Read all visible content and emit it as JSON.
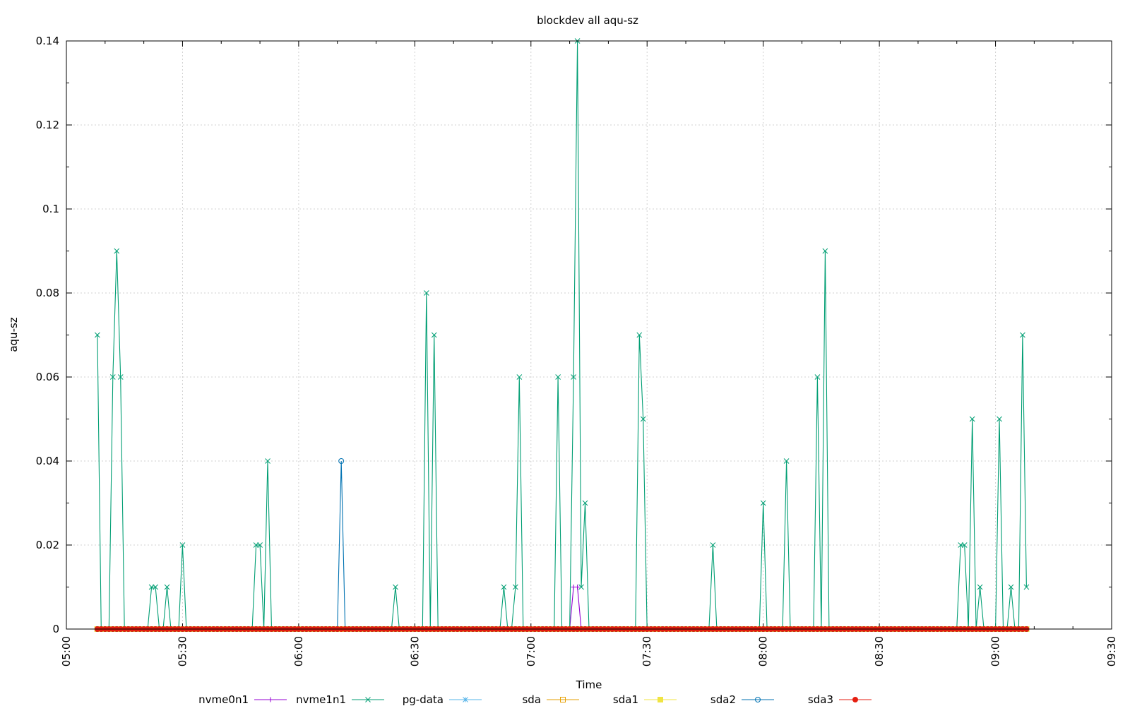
{
  "chart_data": {
    "type": "line",
    "title": "blockdev all aqu-sz",
    "xlabel": "Time",
    "ylabel": "aqu-sz",
    "xlim": [
      "05:00",
      "09:30"
    ],
    "ylim": [
      0,
      0.14
    ],
    "x_ticks": [
      "05:00",
      "05:30",
      "06:00",
      "06:30",
      "07:00",
      "07:30",
      "08:00",
      "08:30",
      "09:00",
      "09:30"
    ],
    "y_ticks": [
      "0",
      "0.02",
      "0.04",
      "0.06",
      "0.08",
      "0.1",
      "0.12",
      "0.14"
    ],
    "grid": true,
    "legend_position": "bottom",
    "sample_interval_minutes": 1,
    "sample_range": [
      "05:08",
      "09:08"
    ],
    "series": [
      {
        "name": "nvme0n1",
        "color": "#9400d3",
        "marker": "plus",
        "default": 0,
        "points": [
          [
            "07:11",
            0.01
          ],
          [
            "07:12",
            0.01
          ]
        ]
      },
      {
        "name": "nvme1n1",
        "color": "#009e73",
        "marker": "x",
        "default": 0,
        "points": [
          [
            "05:08",
            0.07
          ],
          [
            "05:12",
            0.06
          ],
          [
            "05:13",
            0.09
          ],
          [
            "05:14",
            0.06
          ],
          [
            "05:22",
            0.01
          ],
          [
            "05:23",
            0.01
          ],
          [
            "05:26",
            0.01
          ],
          [
            "05:30",
            0.02
          ],
          [
            "05:49",
            0.02
          ],
          [
            "05:50",
            0.02
          ],
          [
            "05:52",
            0.04
          ],
          [
            "06:25",
            0.01
          ],
          [
            "06:33",
            0.08
          ],
          [
            "06:35",
            0.07
          ],
          [
            "06:53",
            0.01
          ],
          [
            "06:56",
            0.01
          ],
          [
            "06:57",
            0.06
          ],
          [
            "07:07",
            0.06
          ],
          [
            "07:11",
            0.06
          ],
          [
            "07:12",
            0.14
          ],
          [
            "07:13",
            0.01
          ],
          [
            "07:14",
            0.03
          ],
          [
            "07:28",
            0.07
          ],
          [
            "07:29",
            0.05
          ],
          [
            "07:47",
            0.02
          ],
          [
            "08:00",
            0.03
          ],
          [
            "08:06",
            0.04
          ],
          [
            "08:14",
            0.06
          ],
          [
            "08:16",
            0.09
          ],
          [
            "08:51",
            0.02
          ],
          [
            "08:52",
            0.02
          ],
          [
            "08:54",
            0.05
          ],
          [
            "08:56",
            0.01
          ],
          [
            "09:01",
            0.05
          ],
          [
            "09:04",
            0.01
          ],
          [
            "09:07",
            0.07
          ],
          [
            "09:08",
            0.01
          ]
        ]
      },
      {
        "name": "pg-data",
        "color": "#56b4e9",
        "marker": "star",
        "default": 0,
        "points": []
      },
      {
        "name": "sda",
        "color": "#e69f00",
        "marker": "box",
        "default": 0,
        "points": []
      },
      {
        "name": "sda1",
        "color": "#f0e442",
        "marker": "filled-box",
        "default": 0,
        "points": []
      },
      {
        "name": "sda2",
        "color": "#0072b2",
        "marker": "circle",
        "default": 0,
        "points": [
          [
            "06:11",
            0.04
          ]
        ]
      },
      {
        "name": "sda3",
        "color": "#e51e10",
        "marker": "filled-circle",
        "default": 0,
        "points": []
      }
    ]
  }
}
